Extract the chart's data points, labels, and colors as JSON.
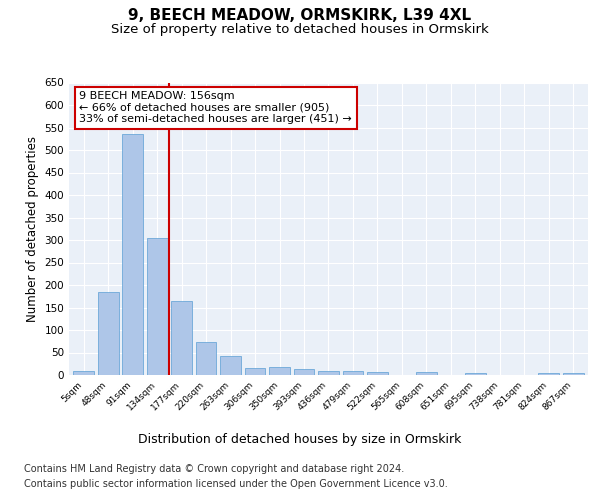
{
  "title1": "9, BEECH MEADOW, ORMSKIRK, L39 4XL",
  "title2": "Size of property relative to detached houses in Ormskirk",
  "xlabel": "Distribution of detached houses by size in Ormskirk",
  "ylabel": "Number of detached properties",
  "categories": [
    "5sqm",
    "48sqm",
    "91sqm",
    "134sqm",
    "177sqm",
    "220sqm",
    "263sqm",
    "306sqm",
    "350sqm",
    "393sqm",
    "436sqm",
    "479sqm",
    "522sqm",
    "565sqm",
    "608sqm",
    "651sqm",
    "695sqm",
    "738sqm",
    "781sqm",
    "824sqm",
    "867sqm"
  ],
  "values": [
    10,
    185,
    535,
    305,
    165,
    73,
    42,
    15,
    18,
    13,
    10,
    10,
    7,
    0,
    7,
    0,
    4,
    0,
    0,
    5,
    5
  ],
  "bar_color": "#aec6e8",
  "bar_edgecolor": "#5a9fd4",
  "vline_x": 3.5,
  "vline_color": "#cc0000",
  "annotation_text": "9 BEECH MEADOW: 156sqm\n← 66% of detached houses are smaller (905)\n33% of semi-detached houses are larger (451) →",
  "annotation_box_color": "#ffffff",
  "annotation_box_edgecolor": "#cc0000",
  "ylim": [
    0,
    650
  ],
  "yticks": [
    0,
    50,
    100,
    150,
    200,
    250,
    300,
    350,
    400,
    450,
    500,
    550,
    600,
    650
  ],
  "plot_bg_color": "#eaf0f8",
  "footer1": "Contains HM Land Registry data © Crown copyright and database right 2024.",
  "footer2": "Contains public sector information licensed under the Open Government Licence v3.0.",
  "title1_fontsize": 11,
  "title2_fontsize": 9.5,
  "xlabel_fontsize": 9,
  "ylabel_fontsize": 8.5,
  "footer_fontsize": 7
}
